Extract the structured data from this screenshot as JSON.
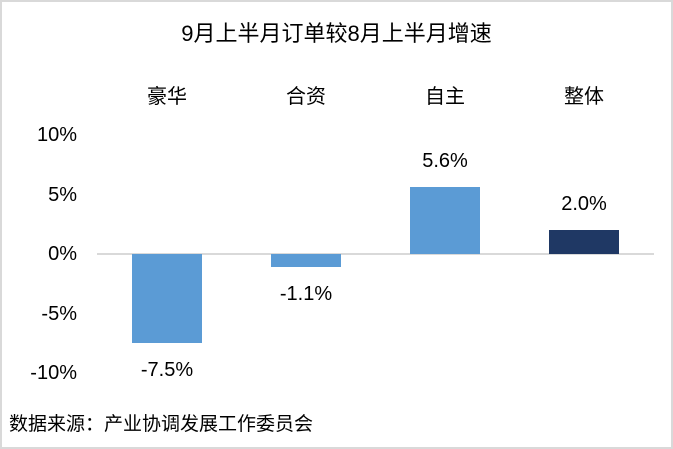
{
  "chart_data": {
    "type": "bar",
    "title": "9月上半月订单较8月上半月增速",
    "categories": [
      "豪华",
      "合资",
      "自主",
      "整体"
    ],
    "values": [
      -7.5,
      -1.1,
      5.6,
      2.0
    ],
    "data_labels": [
      "-7.5%",
      "-1.1%",
      "5.6%",
      "2.0%"
    ],
    "bar_colors": [
      "#5B9BD5",
      "#5B9BD5",
      "#5B9BD5",
      "#1F3864"
    ],
    "y_tick_labels": [
      "10%",
      "5%",
      "0%",
      "-5%",
      "-10%"
    ],
    "y_tick_values": [
      10,
      5,
      0,
      -5,
      -10
    ],
    "ylim": [
      -10,
      10
    ],
    "xlabel": "",
    "ylabel": "",
    "grid": false,
    "legend": "none",
    "category_position": "top",
    "axis_line_color": "#D9D9D9"
  },
  "source_note": "数据来源：产业协调发展工作委员会",
  "frame": {
    "background": "#FFFFFF",
    "border_color": "#D9D9D9"
  }
}
